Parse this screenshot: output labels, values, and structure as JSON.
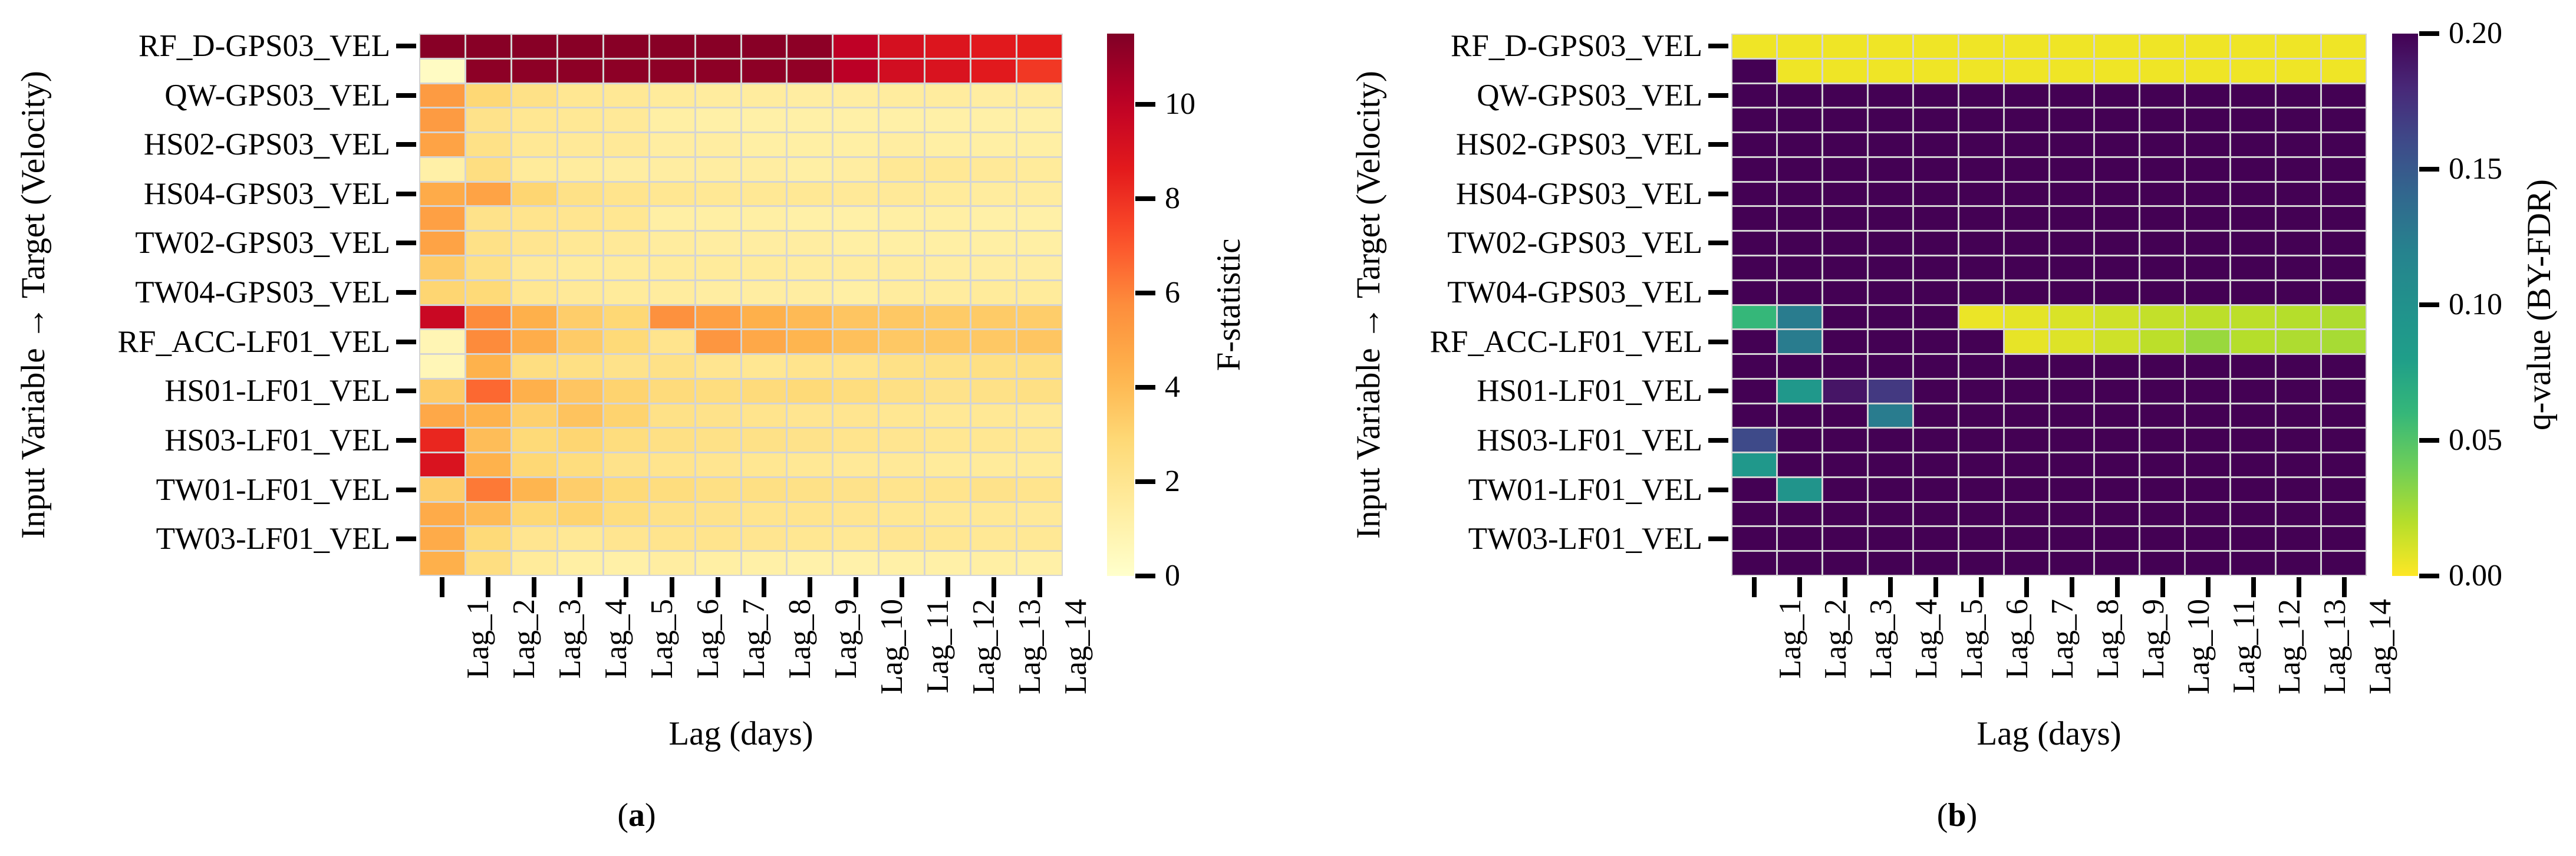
{
  "figure": {
    "captions": {
      "a_open": "(",
      "a_letter": "a",
      "a_close": ")",
      "b_open": "(",
      "b_letter": "b",
      "b_close": ")"
    }
  },
  "colormaps": {
    "YlOrRd": [
      [
        0,
        "#ffffcc"
      ],
      [
        0.125,
        "#ffeda0"
      ],
      [
        0.25,
        "#fed976"
      ],
      [
        0.375,
        "#feb24c"
      ],
      [
        0.5,
        "#fd8d3c"
      ],
      [
        0.625,
        "#fc4e2a"
      ],
      [
        0.75,
        "#e31a1c"
      ],
      [
        0.875,
        "#bd0026"
      ],
      [
        1,
        "#800026"
      ]
    ],
    "viridis": [
      [
        0,
        "#440154"
      ],
      [
        0.1,
        "#482878"
      ],
      [
        0.2,
        "#3e4a89"
      ],
      [
        0.3,
        "#31688e"
      ],
      [
        0.4,
        "#26828e"
      ],
      [
        0.5,
        "#21918c"
      ],
      [
        0.6,
        "#1f9e89"
      ],
      [
        0.7,
        "#35b779"
      ],
      [
        0.8,
        "#6ece58"
      ],
      [
        0.9,
        "#b5de2b"
      ],
      [
        1,
        "#fde725"
      ]
    ]
  },
  "chart_data": [
    {
      "id": "a",
      "type": "heatmap",
      "x_axis_label": "Lag (days)",
      "y_axis_label": "Input Variable → Target (Velocity)",
      "x_tick_labels": [
        "Lag_1",
        "Lag_2",
        "Lag_3",
        "Lag_4",
        "Lag_5",
        "Lag_6",
        "Lag_7",
        "Lag_8",
        "Lag_9",
        "Lag_10",
        "Lag_11",
        "Lag_12",
        "Lag_13",
        "Lag_14"
      ],
      "y_tick_labels": [
        "RF_D-GPS03_VEL",
        "QW-GPS03_VEL",
        "HS02-GPS03_VEL",
        "HS04-GPS03_VEL",
        "TW02-GPS03_VEL",
        "TW04-GPS03_VEL",
        "RF_ACC-LF01_VEL",
        "HS01-LF01_VEL",
        "HS03-LF01_VEL",
        "TW01-LF01_VEL",
        "TW03-LF01_VEL"
      ],
      "y_tick_label_rows": [
        0,
        2,
        4,
        6,
        8,
        10,
        12,
        14,
        16,
        18,
        20
      ],
      "n_rows": 22,
      "n_cols": 14,
      "colormap": "YlOrRd",
      "reverse": false,
      "vmin": 0,
      "vmax": 11.5,
      "grid": true,
      "legend_position": "right",
      "colorbar": {
        "title": "F-statistic",
        "tick_labels": [
          "0",
          "2",
          "4",
          "6",
          "8",
          "10"
        ],
        "tick_values": [
          0,
          2,
          4,
          6,
          8,
          10
        ]
      },
      "values": [
        [
          11.3,
          11.3,
          11.3,
          11.3,
          11.3,
          11.3,
          11.3,
          11.3,
          11.2,
          10.0,
          9.2,
          8.9,
          8.7,
          8.6
        ],
        [
          0.3,
          11.2,
          11.2,
          11.2,
          11.2,
          11.2,
          11.2,
          11.2,
          11.1,
          10.1,
          9.3,
          9.0,
          8.7,
          7.8
        ],
        [
          5.2,
          2.9,
          2.3,
          1.9,
          1.8,
          1.6,
          1.5,
          1.5,
          1.4,
          1.4,
          1.5,
          1.5,
          1.4,
          1.4
        ],
        [
          5.2,
          2.2,
          1.9,
          1.8,
          1.7,
          1.3,
          1.2,
          1.2,
          1.2,
          1.2,
          1.2,
          1.2,
          1.2,
          1.2
        ],
        [
          4.9,
          2.3,
          1.8,
          1.7,
          1.7,
          1.4,
          1.4,
          1.3,
          1.3,
          1.3,
          1.4,
          1.3,
          1.3,
          1.3
        ],
        [
          1.2,
          2.5,
          1.6,
          1.5,
          1.4,
          1.4,
          1.4,
          1.4,
          1.3,
          1.4,
          1.8,
          1.8,
          1.7,
          1.6
        ],
        [
          4.6,
          4.9,
          3.0,
          2.3,
          2.1,
          1.9,
          1.8,
          1.8,
          1.8,
          1.7,
          1.7,
          1.6,
          1.5,
          1.5
        ],
        [
          5.0,
          2.2,
          2.1,
          2.0,
          1.9,
          1.3,
          1.3,
          1.3,
          1.2,
          1.2,
          1.3,
          1.3,
          1.2,
          1.2
        ],
        [
          4.9,
          2.3,
          2.0,
          1.8,
          1.7,
          1.5,
          1.4,
          1.4,
          1.4,
          1.3,
          1.3,
          1.3,
          1.3,
          1.3
        ],
        [
          3.4,
          2.4,
          1.7,
          1.6,
          1.6,
          1.6,
          1.6,
          1.6,
          1.5,
          1.5,
          1.5,
          1.4,
          1.4,
          1.4
        ],
        [
          3.0,
          2.8,
          1.9,
          1.7,
          1.6,
          1.5,
          1.4,
          1.4,
          1.4,
          1.3,
          1.5,
          1.5,
          1.6,
          1.6
        ],
        [
          9.6,
          5.8,
          4.4,
          3.3,
          2.9,
          5.6,
          5.0,
          4.4,
          4.0,
          3.6,
          3.5,
          3.4,
          3.4,
          3.3
        ],
        [
          0.8,
          5.8,
          4.5,
          3.4,
          2.8,
          2.1,
          5.4,
          4.7,
          4.2,
          3.8,
          3.5,
          3.5,
          3.5,
          3.6
        ],
        [
          0.7,
          4.3,
          2.5,
          2.4,
          2.2,
          2.3,
          2.0,
          1.9,
          2.1,
          2.1,
          2.3,
          2.3,
          2.4,
          2.4
        ],
        [
          3.4,
          6.6,
          4.4,
          3.6,
          3.1,
          2.7,
          2.6,
          2.7,
          2.8,
          2.6,
          2.4,
          2.2,
          2.3,
          2.4
        ],
        [
          4.7,
          4.3,
          3.2,
          3.7,
          3.1,
          2.3,
          2.2,
          2.1,
          2.0,
          2.0,
          1.9,
          1.8,
          1.8,
          1.7
        ],
        [
          8.3,
          3.9,
          2.8,
          3.0,
          2.6,
          2.4,
          2.3,
          2.3,
          2.2,
          2.1,
          2.0,
          1.9,
          1.9,
          1.8
        ],
        [
          9.0,
          4.3,
          2.9,
          2.6,
          2.2,
          2.1,
          2.0,
          1.9,
          1.8,
          1.7,
          1.7,
          1.6,
          1.6,
          1.6
        ],
        [
          3.3,
          6.2,
          4.2,
          3.3,
          2.8,
          2.6,
          2.4,
          2.4,
          2.3,
          2.2,
          2.1,
          2.1,
          2.2,
          2.1
        ],
        [
          4.6,
          4.0,
          2.9,
          3.1,
          2.6,
          2.3,
          2.2,
          2.1,
          2.1,
          2.0,
          1.9,
          1.8,
          1.8,
          1.7
        ],
        [
          4.6,
          2.8,
          2.0,
          1.8,
          2.0,
          2.1,
          2.1,
          2.0,
          1.9,
          1.8,
          2.0,
          1.9,
          1.8,
          1.8
        ],
        [
          4.4,
          2.5,
          1.6,
          1.3,
          1.2,
          1.4,
          1.3,
          1.2,
          1.1,
          1.1,
          1.2,
          1.2,
          1.3,
          1.2
        ]
      ]
    },
    {
      "id": "b",
      "type": "heatmap",
      "x_axis_label": "Lag (days)",
      "y_axis_label": "Input Variable → Target (Velocity)",
      "x_tick_labels": [
        "Lag_1",
        "Lag_2",
        "Lag_3",
        "Lag_4",
        "Lag_5",
        "Lag_6",
        "Lag_7",
        "Lag_8",
        "Lag_9",
        "Lag_10",
        "Lag_11",
        "Lag_12",
        "Lag_13",
        "Lag_14"
      ],
      "y_tick_labels": [
        "RF_D-GPS03_VEL",
        "QW-GPS03_VEL",
        "HS02-GPS03_VEL",
        "HS04-GPS03_VEL",
        "TW02-GPS03_VEL",
        "TW04-GPS03_VEL",
        "RF_ACC-LF01_VEL",
        "HS01-LF01_VEL",
        "HS03-LF01_VEL",
        "TW01-LF01_VEL",
        "TW03-LF01_VEL"
      ],
      "y_tick_label_rows": [
        0,
        2,
        4,
        6,
        8,
        10,
        12,
        14,
        16,
        18,
        20
      ],
      "n_rows": 22,
      "n_cols": 14,
      "colormap": "viridis",
      "reverse": true,
      "vmin": 0,
      "vmax": 0.2,
      "grid": true,
      "legend_position": "right",
      "colorbar": {
        "title": "q-value (BY-FDR)",
        "tick_labels": [
          "0.00",
          "0.05",
          "0.10",
          "0.15",
          "0.20"
        ],
        "tick_values": [
          0.0,
          0.05,
          0.1,
          0.15,
          0.2
        ]
      },
      "values": [
        [
          0.004,
          0.004,
          0.004,
          0.004,
          0.004,
          0.004,
          0.004,
          0.004,
          0.004,
          0.004,
          0.004,
          0.004,
          0.004,
          0.004
        ],
        [
          0.2,
          0.004,
          0.004,
          0.004,
          0.004,
          0.004,
          0.004,
          0.004,
          0.004,
          0.004,
          0.004,
          0.004,
          0.004,
          0.004
        ],
        [
          0.2,
          0.2,
          0.2,
          0.2,
          0.2,
          0.2,
          0.2,
          0.2,
          0.2,
          0.2,
          0.2,
          0.2,
          0.2,
          0.2
        ],
        [
          0.2,
          0.2,
          0.2,
          0.2,
          0.2,
          0.2,
          0.2,
          0.2,
          0.2,
          0.2,
          0.2,
          0.2,
          0.2,
          0.2
        ],
        [
          0.2,
          0.2,
          0.2,
          0.2,
          0.2,
          0.2,
          0.2,
          0.2,
          0.2,
          0.2,
          0.2,
          0.2,
          0.2,
          0.2
        ],
        [
          0.2,
          0.2,
          0.2,
          0.2,
          0.2,
          0.2,
          0.2,
          0.2,
          0.2,
          0.2,
          0.2,
          0.2,
          0.2,
          0.2
        ],
        [
          0.2,
          0.2,
          0.2,
          0.2,
          0.2,
          0.2,
          0.2,
          0.2,
          0.2,
          0.2,
          0.2,
          0.2,
          0.2,
          0.2
        ],
        [
          0.2,
          0.2,
          0.2,
          0.2,
          0.2,
          0.2,
          0.2,
          0.2,
          0.2,
          0.2,
          0.2,
          0.2,
          0.2,
          0.2
        ],
        [
          0.2,
          0.2,
          0.2,
          0.2,
          0.2,
          0.2,
          0.2,
          0.2,
          0.2,
          0.2,
          0.2,
          0.2,
          0.2,
          0.2
        ],
        [
          0.2,
          0.2,
          0.2,
          0.2,
          0.2,
          0.2,
          0.2,
          0.2,
          0.2,
          0.2,
          0.2,
          0.2,
          0.2,
          0.2
        ],
        [
          0.2,
          0.2,
          0.2,
          0.2,
          0.2,
          0.2,
          0.2,
          0.2,
          0.2,
          0.2,
          0.2,
          0.2,
          0.2,
          0.2
        ],
        [
          0.06,
          0.125,
          0.2,
          0.2,
          0.2,
          0.005,
          0.007,
          0.01,
          0.013,
          0.016,
          0.018,
          0.018,
          0.02,
          0.022
        ],
        [
          0.2,
          0.125,
          0.2,
          0.2,
          0.2,
          0.2,
          0.006,
          0.009,
          0.013,
          0.018,
          0.028,
          0.02,
          0.022,
          0.024
        ],
        [
          0.2,
          0.2,
          0.2,
          0.2,
          0.2,
          0.2,
          0.2,
          0.2,
          0.2,
          0.2,
          0.2,
          0.2,
          0.2,
          0.2
        ],
        [
          0.2,
          0.09,
          0.19,
          0.17,
          0.2,
          0.2,
          0.2,
          0.2,
          0.2,
          0.2,
          0.2,
          0.2,
          0.2,
          0.2
        ],
        [
          0.2,
          0.2,
          0.2,
          0.125,
          0.2,
          0.2,
          0.2,
          0.2,
          0.2,
          0.2,
          0.2,
          0.2,
          0.2,
          0.2
        ],
        [
          0.16,
          0.2,
          0.2,
          0.2,
          0.2,
          0.2,
          0.2,
          0.2,
          0.2,
          0.2,
          0.2,
          0.2,
          0.2,
          0.2
        ],
        [
          0.09,
          0.2,
          0.2,
          0.2,
          0.2,
          0.2,
          0.2,
          0.2,
          0.2,
          0.2,
          0.2,
          0.2,
          0.2,
          0.2
        ],
        [
          0.2,
          0.095,
          0.2,
          0.2,
          0.2,
          0.2,
          0.2,
          0.2,
          0.2,
          0.2,
          0.2,
          0.2,
          0.2,
          0.2
        ],
        [
          0.2,
          0.2,
          0.2,
          0.2,
          0.2,
          0.2,
          0.2,
          0.2,
          0.2,
          0.2,
          0.2,
          0.2,
          0.2,
          0.2
        ],
        [
          0.2,
          0.2,
          0.2,
          0.2,
          0.2,
          0.2,
          0.2,
          0.2,
          0.2,
          0.2,
          0.2,
          0.2,
          0.2,
          0.2
        ],
        [
          0.2,
          0.2,
          0.2,
          0.2,
          0.2,
          0.2,
          0.2,
          0.2,
          0.2,
          0.2,
          0.2,
          0.2,
          0.2,
          0.2
        ]
      ]
    }
  ]
}
